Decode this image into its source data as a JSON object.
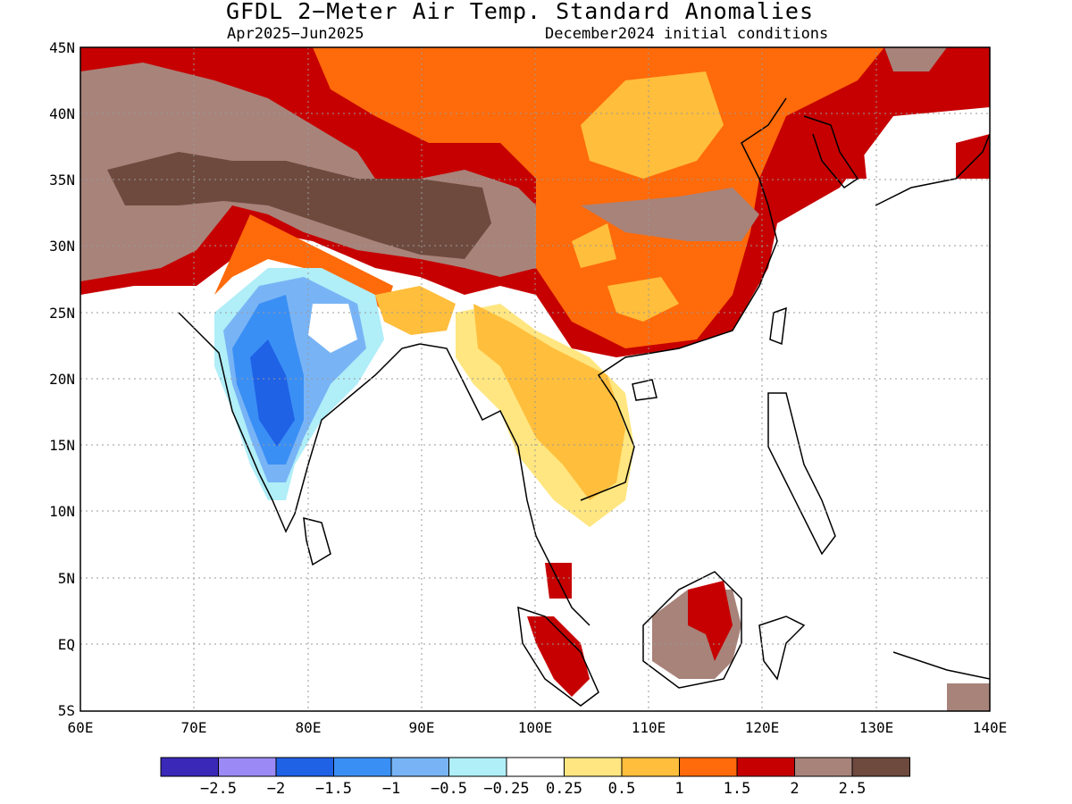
{
  "title": "GFDL 2−Meter Air Temp. Standard Anomalies",
  "subtitle_left": "Apr2025−Jun2025",
  "subtitle_right": "December2024 initial conditions",
  "map": {
    "lon_range": [
      60,
      140
    ],
    "lat_range": [
      -5,
      45
    ],
    "lon_ticks": [
      "60E",
      "70E",
      "80E",
      "90E",
      "100E",
      "110E",
      "120E",
      "130E",
      "140E"
    ],
    "lat_ticks": [
      "5S",
      "EQ",
      "5N",
      "10N",
      "15N",
      "20N",
      "25N",
      "30N",
      "35N",
      "40N",
      "45N"
    ],
    "grid": "dotted"
  },
  "colorbar": {
    "colors": [
      "#3a28b8",
      "#9b8af5",
      "#1f62e6",
      "#3a8ff5",
      "#78b4f5",
      "#b0eef8",
      "#ffffff",
      "#ffe680",
      "#ffbe3c",
      "#ff6a0a",
      "#c60000",
      "#a8837a",
      "#6e4a3e"
    ],
    "labels": [
      "−2.5",
      "−2",
      "−1.5",
      "−1",
      "−0.5",
      "−0.25",
      "0.25",
      "0.5",
      "1",
      "1.5",
      "2",
      "2.5"
    ]
  }
}
